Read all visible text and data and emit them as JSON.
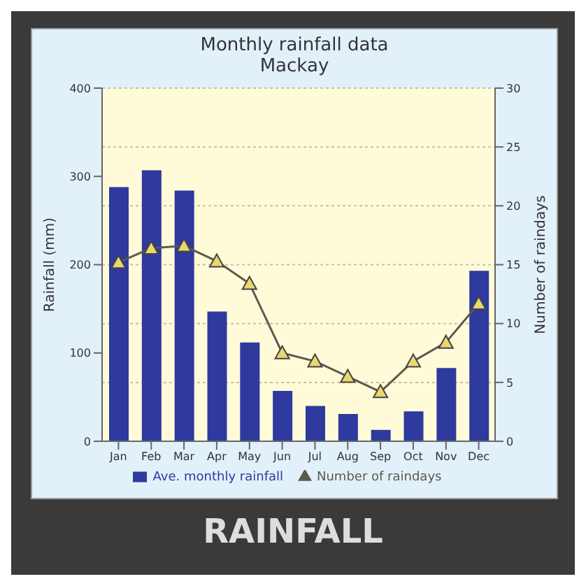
{
  "chart_data": {
    "type": "bar",
    "title": "Monthly rainfall data",
    "subtitle": "Mackay",
    "ylabel": "Rainfall (mm)",
    "y2label": "Number of raindays",
    "categories": [
      "Jan",
      "Feb",
      "Mar",
      "Apr",
      "May",
      "Jun",
      "Jul",
      "Aug",
      "Sep",
      "Oct",
      "Nov",
      "Dec"
    ],
    "series": [
      {
        "name": "Ave. monthly rainfall",
        "color": "#2e3a9e",
        "values": [
          288,
          307,
          284,
          147,
          112,
          57,
          40,
          31,
          13,
          34,
          83,
          193
        ]
      },
      {
        "name": "Number of raindays",
        "type": "line",
        "axis": "y2",
        "color": "#5a5a50",
        "marker": "triangle",
        "values": [
          15.2,
          16.4,
          16.6,
          15.3,
          13.4,
          7.5,
          6.8,
          5.5,
          4.2,
          6.8,
          8.4,
          11.7
        ]
      }
    ],
    "ylim": [
      0,
      400
    ],
    "yticks": [
      0,
      100,
      200,
      300,
      400
    ],
    "y2lim": [
      0,
      30
    ],
    "y2ticks": [
      0,
      5,
      10,
      15,
      20,
      25,
      30
    ],
    "grid": "y",
    "legend": "bottom",
    "annotations": [
      "RAINFALL"
    ]
  }
}
